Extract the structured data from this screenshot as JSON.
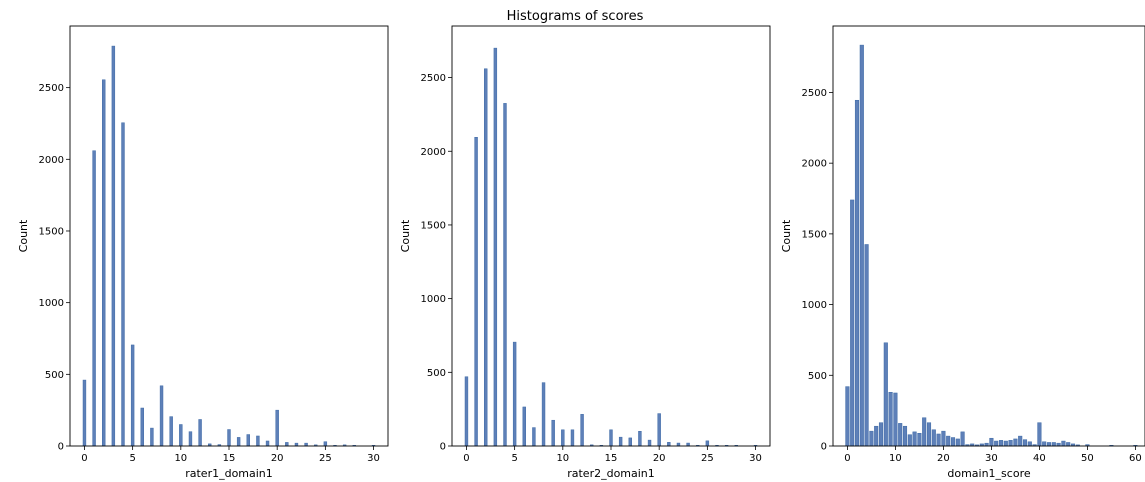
{
  "figure": {
    "title": "Histograms of scores"
  },
  "colors": {
    "bar": "#4c72b0",
    "bar_edge": "#3d6aa6",
    "axes": "#000000"
  },
  "chart_data": [
    {
      "type": "bar",
      "xlabel": "rater1_domain1",
      "ylabel": "Count",
      "xlim": [
        -1.5,
        31.5
      ],
      "ylim": [
        0,
        2930
      ],
      "xticks": [
        0,
        5,
        10,
        15,
        20,
        25,
        30
      ],
      "yticks": [
        0,
        500,
        1000,
        1500,
        2000,
        2500
      ],
      "bin_width": 0.3,
      "x": [
        0,
        1,
        2,
        3,
        4,
        5,
        6,
        7,
        8,
        9,
        10,
        11,
        12,
        13,
        14,
        15,
        16,
        17,
        18,
        19,
        20,
        21,
        22,
        23,
        24,
        25,
        26,
        27,
        28,
        30
      ],
      "values": [
        460,
        2060,
        2555,
        2790,
        2255,
        705,
        265,
        125,
        420,
        205,
        150,
        100,
        185,
        15,
        10,
        115,
        60,
        80,
        70,
        35,
        250,
        25,
        20,
        20,
        8,
        30,
        5,
        8,
        5,
        5
      ]
    },
    {
      "type": "bar",
      "xlabel": "rater2_domain1",
      "ylabel": "Count",
      "xlim": [
        -1.5,
        31.5
      ],
      "ylim": [
        0,
        2850
      ],
      "xticks": [
        0,
        5,
        10,
        15,
        20,
        25,
        30
      ],
      "yticks": [
        0,
        500,
        1000,
        1500,
        2000,
        2500
      ],
      "bin_width": 0.3,
      "x": [
        0,
        1,
        2,
        3,
        4,
        5,
        6,
        7,
        8,
        9,
        10,
        11,
        12,
        13,
        14,
        15,
        16,
        17,
        18,
        19,
        20,
        21,
        22,
        23,
        24,
        25,
        26,
        27,
        28,
        30
      ],
      "values": [
        470,
        2095,
        2560,
        2700,
        2325,
        705,
        265,
        125,
        430,
        175,
        110,
        110,
        215,
        8,
        5,
        110,
        60,
        55,
        100,
        40,
        220,
        25,
        20,
        20,
        5,
        35,
        5,
        5,
        5,
        5
      ]
    },
    {
      "type": "bar",
      "xlabel": "domain1_score",
      "ylabel": "Count",
      "xlim": [
        -3,
        62
      ],
      "ylim": [
        0,
        2970
      ],
      "xticks": [
        0,
        10,
        20,
        30,
        40,
        50,
        60
      ],
      "yticks": [
        0,
        500,
        1000,
        1500,
        2000,
        2500
      ],
      "bin_width": 0.75,
      "x": [
        0,
        1,
        2,
        3,
        4,
        5,
        6,
        7,
        8,
        9,
        10,
        11,
        12,
        13,
        14,
        15,
        16,
        17,
        18,
        19,
        20,
        21,
        22,
        23,
        24,
        25,
        26,
        27,
        28,
        29,
        30,
        31,
        32,
        33,
        34,
        35,
        36,
        37,
        38,
        39,
        40,
        41,
        42,
        43,
        44,
        45,
        46,
        47,
        48,
        50,
        55,
        60
      ],
      "values": [
        420,
        1740,
        2445,
        2835,
        1425,
        105,
        140,
        165,
        730,
        380,
        375,
        160,
        140,
        80,
        100,
        90,
        200,
        165,
        115,
        85,
        105,
        70,
        60,
        50,
        100,
        10,
        15,
        8,
        15,
        20,
        55,
        35,
        40,
        35,
        40,
        50,
        70,
        45,
        30,
        10,
        165,
        30,
        25,
        25,
        20,
        35,
        25,
        15,
        8,
        10,
        5,
        5
      ]
    }
  ]
}
